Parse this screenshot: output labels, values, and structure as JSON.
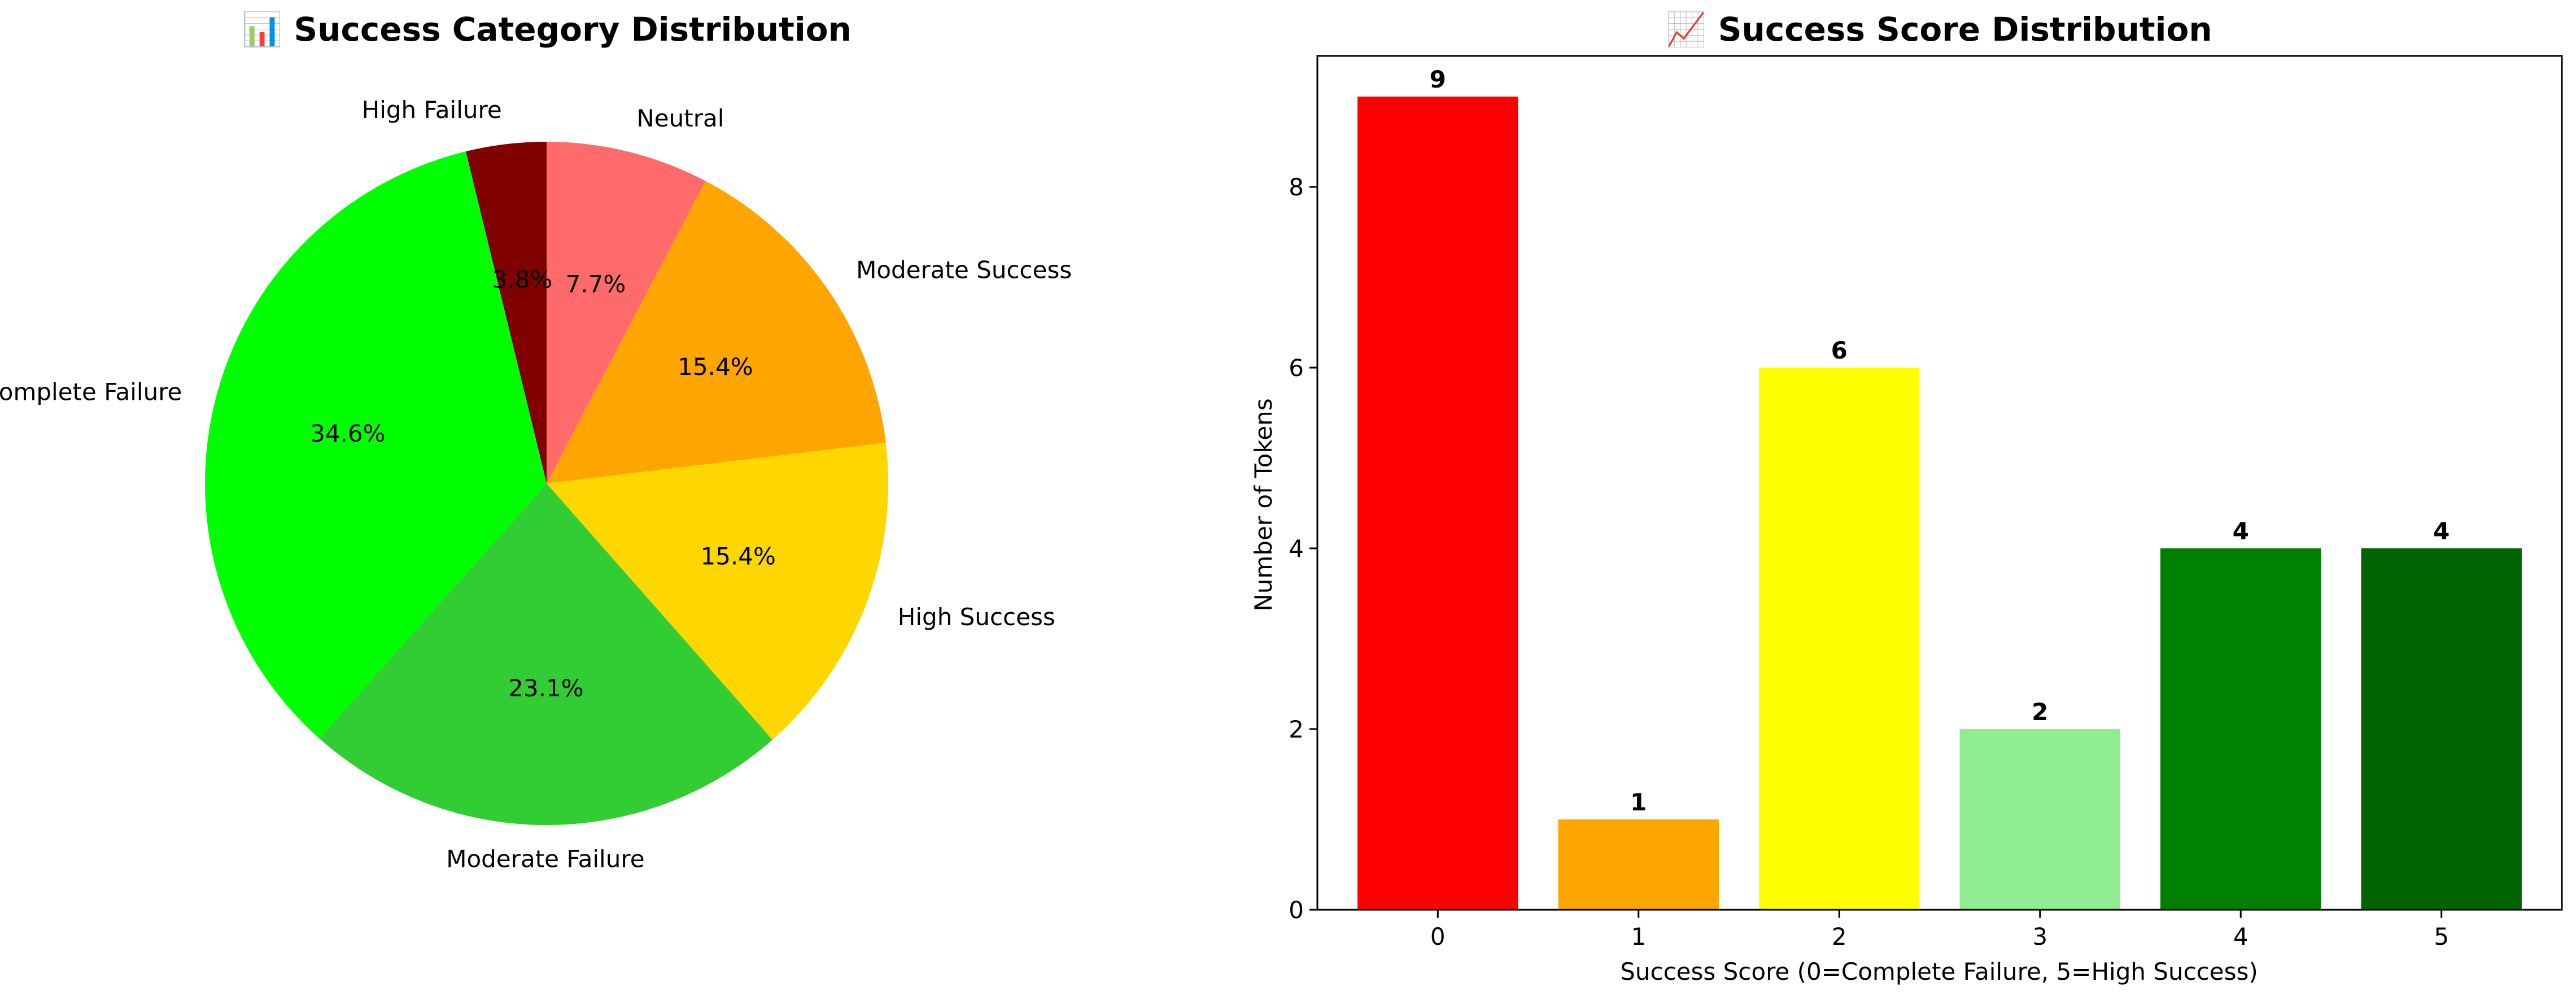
{
  "chart_data": [
    {
      "type": "pie",
      "title": "📊 Success Category Distribution",
      "start_angle_deg": 90,
      "direction": "counterclockwise",
      "slices": [
        {
          "label": "High Failure",
          "value": 3.8,
          "pct_label": "3.8%",
          "color": "#800000"
        },
        {
          "label": "Complete Failure",
          "value": 34.6,
          "pct_label": "34.6%",
          "color": "#00ff00"
        },
        {
          "label": "Moderate Failure",
          "value": 23.1,
          "pct_label": "23.1%",
          "color": "#32cd32"
        },
        {
          "label": "High Success",
          "value": 15.4,
          "pct_label": "15.4%",
          "color": "#ffd700"
        },
        {
          "label": "Moderate Success",
          "value": 15.4,
          "pct_label": "15.4%",
          "color": "#ffa500"
        },
        {
          "label": "Neutral",
          "value": 7.7,
          "pct_label": "7.7%",
          "color": "#ff6b6b"
        }
      ]
    },
    {
      "type": "bar",
      "title": "📈 Success Score Distribution",
      "xlabel": "Success Score (0=Complete Failure, 5=High Success)",
      "ylabel": "Number of Tokens",
      "categories": [
        "0",
        "1",
        "2",
        "3",
        "4",
        "5"
      ],
      "values": [
        9,
        1,
        6,
        2,
        4,
        4
      ],
      "colors": [
        "#ff0000",
        "#ffa500",
        "#ffff00",
        "#90ee90",
        "#008000",
        "#006400"
      ],
      "ylim": [
        0,
        9.45
      ],
      "yticks": [
        0,
        2,
        4,
        6,
        8
      ],
      "grid": false
    }
  ]
}
